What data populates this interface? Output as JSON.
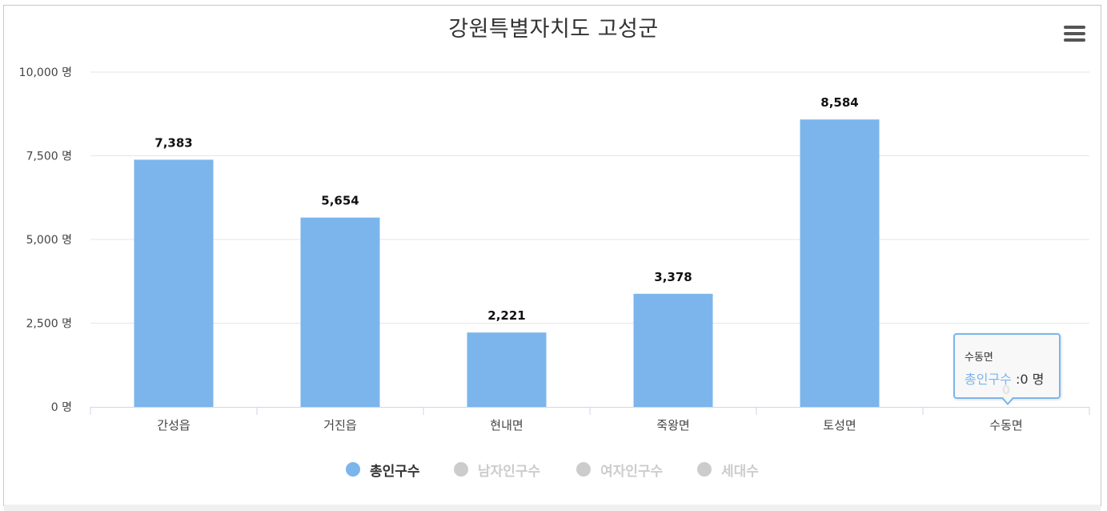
{
  "chart_data": {
    "type": "bar",
    "title": "강원특별자치도 고성군",
    "categories": [
      "간성읍",
      "거진읍",
      "현내면",
      "죽왕면",
      "토성면",
      "수동면"
    ],
    "series": [
      {
        "name": "총인구수",
        "values": [
          7383,
          5654,
          2221,
          3378,
          8584,
          0
        ],
        "data_labels": [
          "7,383",
          "5,654",
          "2,221",
          "3,378",
          "8,584",
          "0"
        ],
        "color": "#7cb5ec",
        "visible": true
      }
    ],
    "legend_series": [
      {
        "name": "총인구수",
        "color": "#7cb5ec",
        "visible": true
      },
      {
        "name": "남자인구수",
        "color": "#cccccc",
        "visible": false
      },
      {
        "name": "여자인구수",
        "color": "#cccccc",
        "visible": false
      },
      {
        "name": "세대수",
        "color": "#cccccc",
        "visible": false
      }
    ],
    "y_ticks": [
      0,
      2500,
      5000,
      7500,
      10000
    ],
    "y_tick_labels": [
      "0 명",
      "2,500 명",
      "5,000 명",
      "7,500 명",
      "10,000 명"
    ],
    "ylim": [
      0,
      10000
    ],
    "grid": true,
    "legend_position": "bottom-center"
  },
  "tooltip": {
    "category": "수동면",
    "series_name": "총인구수",
    "separator": " :",
    "value_text": "0 명"
  },
  "menu": {
    "icon": "hamburger-menu-icon"
  },
  "colors": {
    "bar": "#7cb5ec",
    "grid": "#e6e6e6",
    "axis": "#ccd6eb",
    "legend_inactive": "#cccccc",
    "legend_active_text": "#333333",
    "legend_inactive_text": "#cccccc"
  }
}
